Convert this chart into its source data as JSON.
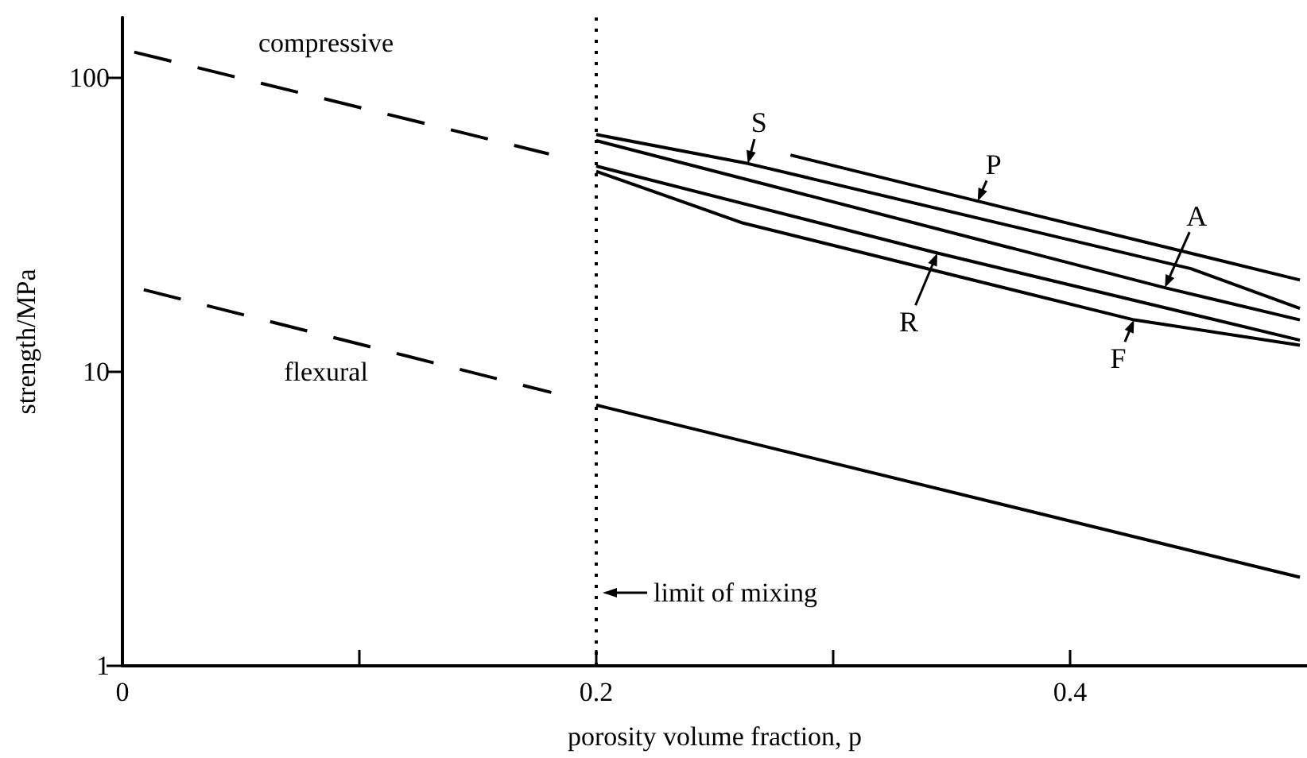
{
  "chart_data": {
    "type": "line",
    "xlabel": "porosity volume fraction, p",
    "ylabel": "strength/MPa",
    "log": "y",
    "xlim": [
      0,
      0.5
    ],
    "ylim": [
      1,
      160
    ],
    "xticks": [
      0,
      {
        "value": 0.1,
        "label": null
      },
      0.2,
      {
        "value": 0.3,
        "label": null
      },
      0.4
    ],
    "yticks": [
      1,
      10,
      100
    ],
    "grid": false,
    "marker": "none",
    "series": [
      {
        "color": "#000000",
        "line_style": "dashed",
        "x": [
          0.005,
          0.18
        ],
        "values": [
          122,
          55
        ]
      },
      {
        "color": "#000000",
        "line_style": "dashed",
        "x": [
          0.009,
          0.181
        ],
        "values": [
          19,
          8.5
        ]
      },
      {
        "color": "#000000",
        "line_style": "solid",
        "x": [
          0.2,
          0.497
        ],
        "values": [
          7.7,
          2.0
        ]
      },
      {
        "color": "#000000",
        "line_style": "solid",
        "x": [
          0.2,
          0.264,
          0.451,
          0.497
        ],
        "values": [
          64,
          51,
          22.4,
          16.4
        ]
      },
      {
        "color": "#000000",
        "line_style": "solid",
        "x": [
          0.282,
          0.361,
          0.497
        ],
        "values": [
          54.5,
          38,
          20.5
        ]
      },
      {
        "color": "#000000",
        "line_style": "solid",
        "x": [
          0.2,
          0.273,
          0.44,
          0.497
        ],
        "values": [
          61,
          43,
          19.3,
          15
        ]
      },
      {
        "color": "#000000",
        "line_style": "solid",
        "x": [
          0.2,
          0.344,
          0.497
        ],
        "values": [
          50,
          25.3,
          12.8
        ]
      },
      {
        "color": "#000000",
        "line_style": "solid",
        "x": [
          0.2,
          0.262,
          0.427,
          0.497
        ],
        "values": [
          48,
          32,
          15,
          12.3
        ]
      }
    ],
    "ref_lines": [
      {
        "axis": "x",
        "value": 0.2,
        "label": "limit of mixing",
        "line_style": "dotted",
        "color": "#000000"
      }
    ],
    "annotations": [
      "compressive",
      "flexural",
      {
        "text": "S",
        "x": 0.264,
        "y": 51
      },
      {
        "text": "P",
        "x": 0.361,
        "y": 38
      },
      {
        "text": "A",
        "x": 0.44,
        "y": 19.3
      },
      {
        "text": "R",
        "x": 0.344,
        "y": 25.3
      },
      {
        "text": "F",
        "x": 0.427,
        "y": 15
      }
    ]
  }
}
